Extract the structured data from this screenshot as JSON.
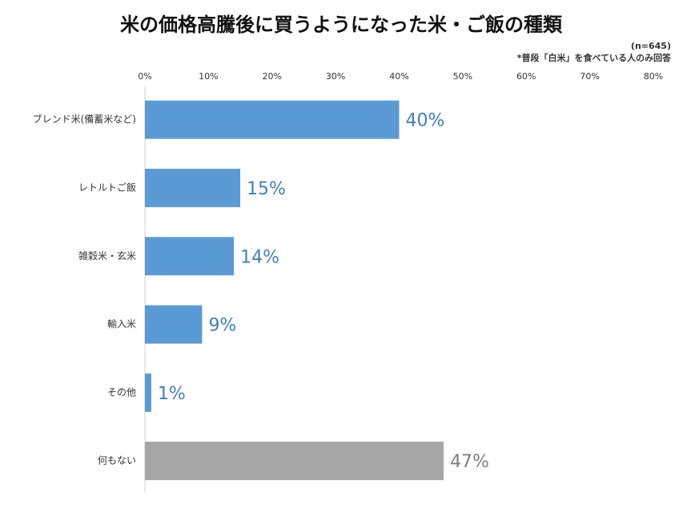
{
  "chart_data": {
    "type": "hbar",
    "title": "米の価格高騰後に買うようになった米・ご飯の種類",
    "note": "(n=645)",
    "subnote": "*普段「白米」を食べている人のみ回答",
    "categories": [
      "ブレンド米(備蓄米など)",
      "レトルトご飯",
      "雑穀米・玄米",
      "輸入米",
      "その他",
      "何もない"
    ],
    "values": [
      40,
      15,
      14,
      9,
      1,
      47
    ],
    "value_labels": [
      "40%",
      "15%",
      "14%",
      "9%",
      "1%",
      "47%"
    ],
    "colors": [
      "#5b9bd5",
      "#5b9bd5",
      "#5b9bd5",
      "#5b9bd5",
      "#5b9bd5",
      "#a5a5a5"
    ],
    "value_label_colors": [
      "#3f7fbf",
      "#3f7fbf",
      "#3f7fbf",
      "#3f7fbf",
      "#3f7fbf",
      "#7f7f7f"
    ],
    "xlim": [
      0,
      80
    ],
    "xticks": [
      {
        "value": 0,
        "label": "0%"
      },
      {
        "value": 10,
        "label": "10%"
      },
      {
        "value": 20,
        "label": "20%"
      },
      {
        "value": 30,
        "label": "30%"
      },
      {
        "value": 40,
        "label": "40%"
      },
      {
        "value": 50,
        "label": "50%"
      },
      {
        "value": 60,
        "label": "60%"
      },
      {
        "value": 70,
        "label": "70%"
      },
      {
        "value": 80,
        "label": "80%"
      }
    ]
  }
}
